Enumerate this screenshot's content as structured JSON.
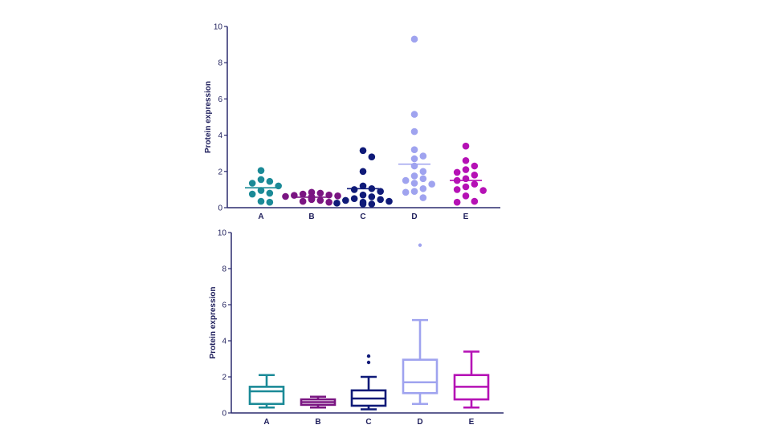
{
  "chart_data": [
    {
      "type": "scatter",
      "subtype": "dot-plot",
      "title": "",
      "xlabel": "",
      "ylabel": "Protein expression",
      "ylim": [
        0,
        10
      ],
      "yticks": [
        "0",
        "2",
        "4",
        "6",
        "8",
        "10"
      ],
      "categories": [
        "A",
        "B",
        "C",
        "D",
        "E"
      ],
      "series": [
        {
          "name": "A",
          "color": "#1b8a97",
          "mean": 1.1,
          "values": [
            2.05,
            1.55,
            1.45,
            1.35,
            1.2,
            0.95,
            0.8,
            0.75,
            0.35,
            0.3
          ]
        },
        {
          "name": "B",
          "color": "#7a1582",
          "mean": 0.58,
          "values": [
            0.85,
            0.8,
            0.75,
            0.7,
            0.68,
            0.65,
            0.62,
            0.6,
            0.58,
            0.55,
            0.5,
            0.48,
            0.45,
            0.4,
            0.35,
            0.3
          ]
        },
        {
          "name": "C",
          "color": "#0f1a78",
          "mean": 1.05,
          "values": [
            3.15,
            2.8,
            2.0,
            1.2,
            1.05,
            1.0,
            0.9,
            0.7,
            0.6,
            0.5,
            0.45,
            0.4,
            0.35,
            0.3,
            0.25,
            0.2,
            0.2
          ]
        },
        {
          "name": "D",
          "color": "#9fa3ef",
          "mean": 2.4,
          "values": [
            9.3,
            5.15,
            4.2,
            3.2,
            2.85,
            2.7,
            2.3,
            2.0,
            1.75,
            1.6,
            1.5,
            1.35,
            1.3,
            1.05,
            0.9,
            0.85,
            0.55
          ]
        },
        {
          "name": "E",
          "color": "#b511b5",
          "mean": 1.5,
          "values": [
            3.4,
            2.6,
            2.3,
            2.1,
            1.95,
            1.8,
            1.6,
            1.5,
            1.3,
            1.15,
            1.0,
            0.95,
            0.65,
            0.35,
            0.3
          ]
        }
      ]
    },
    {
      "type": "box",
      "title": "",
      "xlabel": "",
      "ylabel": "Protein expression",
      "ylim": [
        0,
        10
      ],
      "yticks": [
        "0",
        "2",
        "4",
        "6",
        "8",
        "10"
      ],
      "categories": [
        "A",
        "B",
        "C",
        "D",
        "E"
      ],
      "series": [
        {
          "name": "A",
          "color": "#1b8a97",
          "min": 0.3,
          "q1": 0.5,
          "median": 1.2,
          "q3": 1.45,
          "max": 2.1,
          "outliers": []
        },
        {
          "name": "B",
          "color": "#7a1582",
          "min": 0.3,
          "q1": 0.45,
          "median": 0.6,
          "q3": 0.75,
          "max": 0.9,
          "outliers": []
        },
        {
          "name": "C",
          "color": "#0f1a78",
          "min": 0.2,
          "q1": 0.4,
          "median": 0.8,
          "q3": 1.25,
          "max": 2.0,
          "outliers": [
            2.8,
            3.15
          ]
        },
        {
          "name": "D",
          "color": "#9fa3ef",
          "min": 0.5,
          "q1": 1.1,
          "median": 1.7,
          "q3": 2.95,
          "max": 5.15,
          "outliers": [
            9.3
          ]
        },
        {
          "name": "E",
          "color": "#b511b5",
          "min": 0.3,
          "q1": 0.75,
          "median": 1.45,
          "q3": 2.1,
          "max": 3.4,
          "outliers": []
        }
      ]
    }
  ]
}
